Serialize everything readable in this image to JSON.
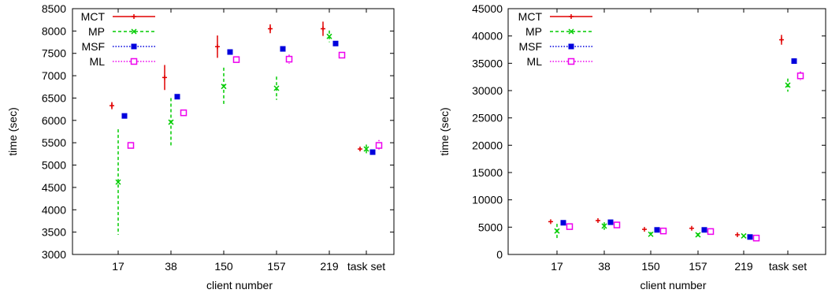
{
  "chart_data": [
    {
      "type": "scatter",
      "subtype": "error-bar",
      "xlabel": "client number",
      "ylabel": "time (sec)",
      "categories": [
        "17",
        "38",
        "150",
        "157",
        "219",
        "task set"
      ],
      "ylim": [
        3000,
        8500
      ],
      "yticks": [
        3000,
        3500,
        4000,
        4500,
        5000,
        5500,
        6000,
        6500,
        7000,
        7500,
        8000,
        8500
      ],
      "grid": false,
      "legend_position": "top-left",
      "series": [
        {
          "name": "MCT",
          "color": "#e00000",
          "dash": "solid",
          "marker": "plus",
          "values": [
            6330,
            6960,
            7650,
            8050,
            8050,
            5360
          ],
          "errors": [
            80,
            280,
            250,
            100,
            160,
            30
          ]
        },
        {
          "name": "MP",
          "color": "#00cc00",
          "dash": "dashed",
          "marker": "x",
          "values": [
            4620,
            5960,
            6760,
            6720,
            7880,
            5360
          ],
          "errors": [
            1180,
            540,
            420,
            260,
            130,
            100
          ]
        },
        {
          "name": "MSF",
          "color": "#0000dd",
          "dash": "dotted",
          "marker": "box",
          "values": [
            6100,
            6530,
            7530,
            7600,
            7720,
            5290
          ],
          "errors": [
            30,
            50,
            30,
            30,
            40,
            30
          ]
        },
        {
          "name": "ML",
          "color": "#ee00ee",
          "dash": "dotted",
          "marker": "open-box",
          "values": [
            5440,
            6170,
            7360,
            7370,
            7460,
            5440
          ],
          "errors": [
            30,
            70,
            50,
            100,
            50,
            120
          ]
        }
      ]
    },
    {
      "type": "scatter",
      "subtype": "error-bar",
      "xlabel": "client number",
      "ylabel": "time (sec)",
      "categories": [
        "17",
        "38",
        "150",
        "157",
        "219",
        "task set"
      ],
      "ylim": [
        0,
        45000
      ],
      "yticks": [
        0,
        5000,
        10000,
        15000,
        20000,
        25000,
        30000,
        35000,
        40000,
        45000
      ],
      "grid": false,
      "legend_position": "top-left",
      "series": [
        {
          "name": "MCT",
          "color": "#e00000",
          "dash": "solid",
          "marker": "plus",
          "values": [
            6000,
            6200,
            4600,
            4800,
            3600,
            39300
          ],
          "errors": [
            100,
            150,
            100,
            100,
            100,
            900
          ]
        },
        {
          "name": "MP",
          "color": "#00cc00",
          "dash": "dashed",
          "marker": "x",
          "values": [
            4300,
            5200,
            3700,
            3600,
            3400,
            31000
          ],
          "errors": [
            1300,
            700,
            400,
            300,
            200,
            1200
          ]
        },
        {
          "name": "MSF",
          "color": "#0000dd",
          "dash": "dotted",
          "marker": "box",
          "values": [
            5800,
            5900,
            4500,
            4500,
            3200,
            35400
          ],
          "errors": [
            100,
            100,
            100,
            100,
            100,
            500
          ]
        },
        {
          "name": "ML",
          "color": "#ee00ee",
          "dash": "dotted",
          "marker": "open-box",
          "values": [
            5100,
            5400,
            4300,
            4200,
            3000,
            32700
          ],
          "errors": [
            200,
            200,
            150,
            150,
            100,
            800
          ]
        }
      ]
    }
  ]
}
